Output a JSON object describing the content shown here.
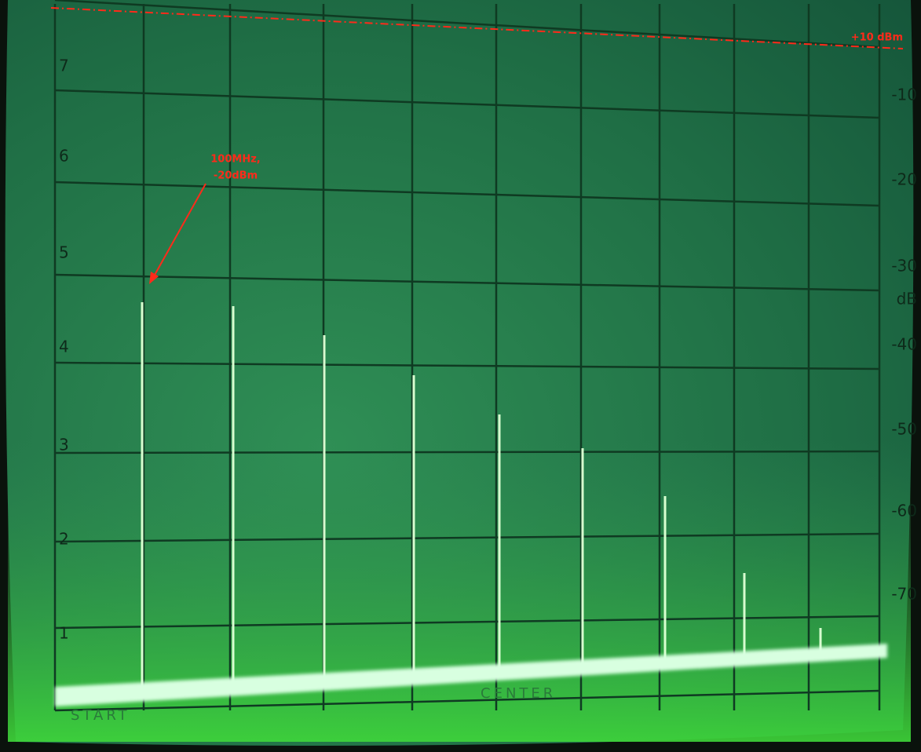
{
  "screen": {
    "annotation": [
      "100MHz,",
      "-20dBm"
    ],
    "ref_label": "+10 dBm",
    "left_scale": [
      "7",
      "6",
      "5",
      "4",
      "3",
      "2",
      "1"
    ],
    "right_scale": [
      "-10",
      "-20",
      "-30",
      "dB",
      "-40",
      "-50",
      "-60",
      "-70"
    ],
    "bottom_labels": [
      "START",
      "CENTER"
    ]
  }
}
